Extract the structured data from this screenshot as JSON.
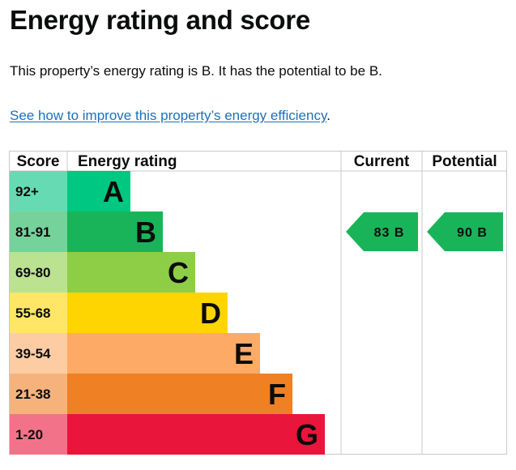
{
  "page": {
    "title": "Energy rating and score",
    "summary": "This property’s energy rating is B. It has the potential to be B.",
    "improve_link": "See how to improve this property’s energy efficiency",
    "improve_suffix": "."
  },
  "chart_data": {
    "type": "table",
    "headers": {
      "score": "Score",
      "rating": "Energy rating",
      "current": "Current",
      "potential": "Potential"
    },
    "bands": [
      {
        "letter": "A",
        "score": "92+",
        "color": "#00c781",
        "score_bg": "#66dab3"
      },
      {
        "letter": "B",
        "score": "81-91",
        "color": "#19b459",
        "score_bg": "#75d29b"
      },
      {
        "letter": "C",
        "score": "69-80",
        "color": "#8dce46",
        "score_bg": "#bbe290"
      },
      {
        "letter": "D",
        "score": "55-68",
        "color": "#ffd500",
        "score_bg": "#ffe666"
      },
      {
        "letter": "E",
        "score": "39-54",
        "color": "#fcaa65",
        "score_bg": "#fdcca3"
      },
      {
        "letter": "F",
        "score": "21-38",
        "color": "#ef8023",
        "score_bg": "#f5b37b"
      },
      {
        "letter": "G",
        "score": "1-20",
        "color": "#e9153b",
        "score_bg": "#f27389"
      }
    ],
    "current": {
      "value": 83,
      "band": "B",
      "label": "83  B"
    },
    "potential": {
      "value": 90,
      "band": "B",
      "label": "90  B"
    }
  },
  "colors": {
    "link": "#1d70b8",
    "text": "#0b0c0c",
    "grid": "#c8c8c8"
  }
}
